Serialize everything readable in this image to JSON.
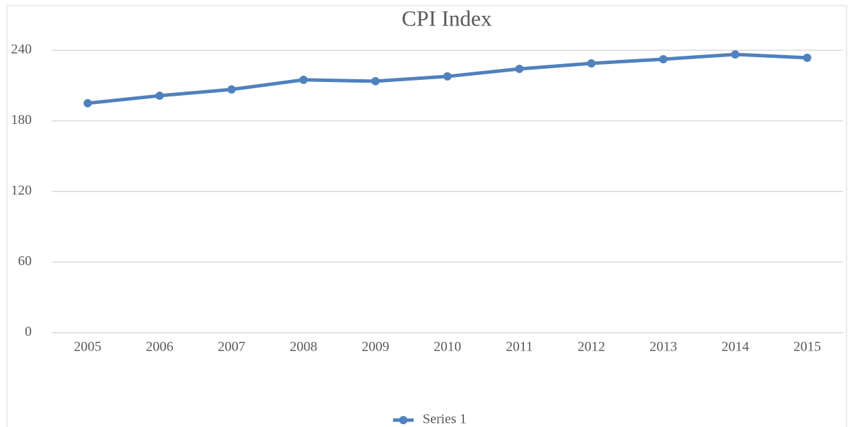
{
  "chart_data": {
    "type": "line",
    "title": "CPI Index",
    "categories": [
      "2005",
      "2006",
      "2007",
      "2008",
      "2009",
      "2010",
      "2011",
      "2012",
      "2013",
      "2014",
      "2015"
    ],
    "series": [
      {
        "name": "Series 1",
        "color": "#4f81bd",
        "values": [
          195,
          201.4,
          206.7,
          214.9,
          213.7,
          217.8,
          224.2,
          228.9,
          232.4,
          236.5,
          233.6
        ]
      }
    ],
    "ylim": [
      0,
      240
    ],
    "yticks": [
      0,
      60,
      120,
      180,
      240
    ],
    "grid": true,
    "legend": "bottom"
  }
}
